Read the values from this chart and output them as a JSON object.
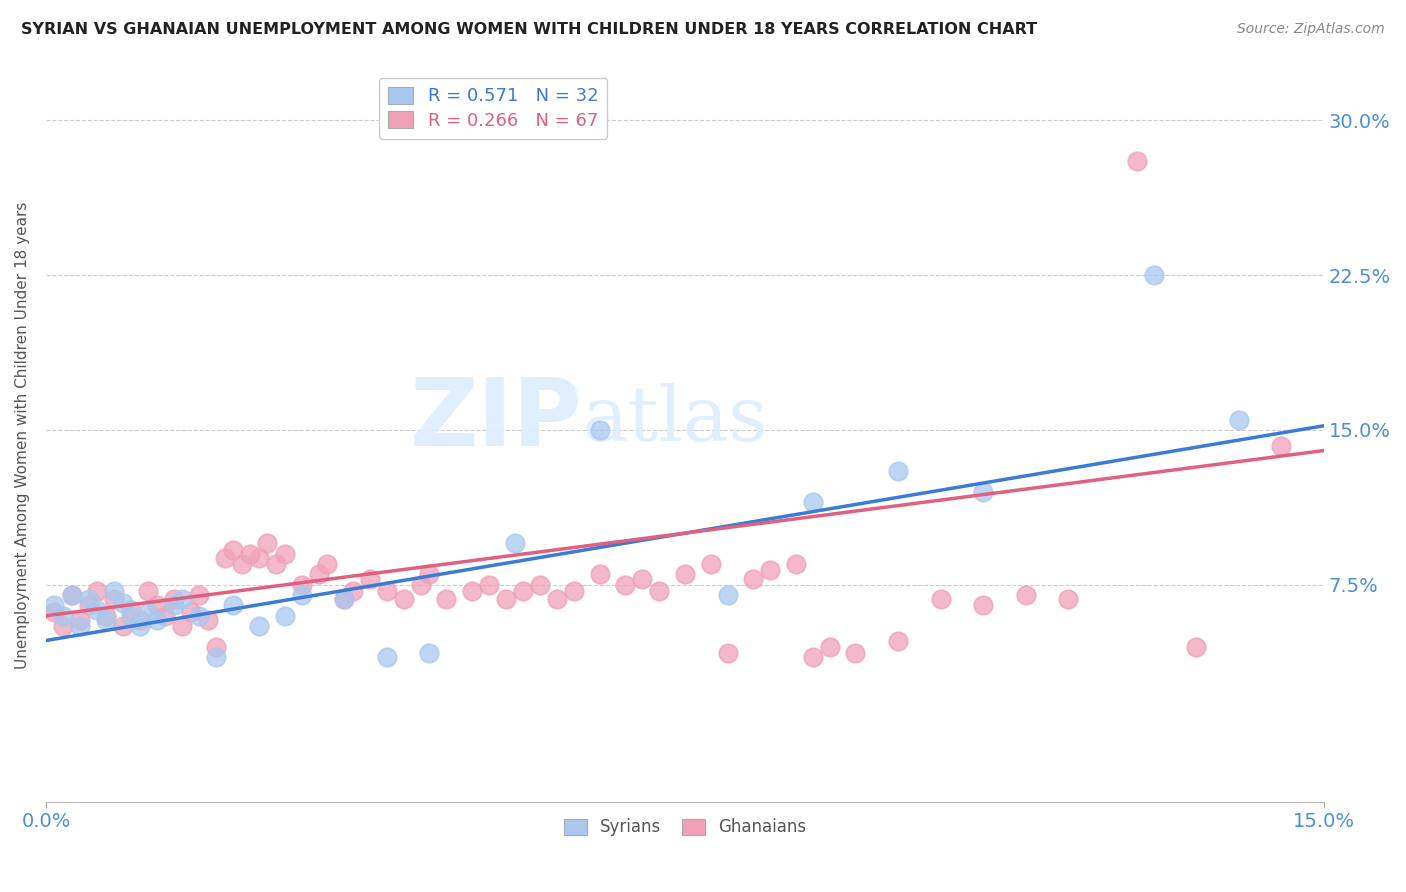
{
  "title": "SYRIAN VS GHANAIAN UNEMPLOYMENT AMONG WOMEN WITH CHILDREN UNDER 18 YEARS CORRELATION CHART",
  "source": "Source: ZipAtlas.com",
  "ylabel": "Unemployment Among Women with Children Under 18 years",
  "ytick_values": [
    0.075,
    0.15,
    0.225,
    0.3
  ],
  "ytick_labels": [
    "7.5%",
    "15.0%",
    "22.5%",
    "30.0%"
  ],
  "xlim": [
    0.0,
    0.15
  ],
  "ylim": [
    -0.03,
    0.325
  ],
  "color_syrian": "#A8C8F0",
  "color_ghanaian": "#F0A0B8",
  "color_line_syrian": "#3A7BD5",
  "color_line_ghanaian": "#E06080",
  "background_color": "#FFFFFF",
  "syrian_line_start_y": 0.048,
  "syrian_line_end_y": 0.152,
  "ghanaian_line_start_y": 0.06,
  "ghanaian_line_end_y": 0.14,
  "syrian_x": [
    0.001,
    0.002,
    0.003,
    0.004,
    0.005,
    0.006,
    0.007,
    0.008,
    0.009,
    0.01,
    0.011,
    0.012,
    0.013,
    0.015,
    0.016,
    0.018,
    0.02,
    0.022,
    0.025,
    0.028,
    0.03,
    0.035,
    0.04,
    0.045,
    0.055,
    0.065,
    0.08,
    0.09,
    0.1,
    0.11,
    0.13,
    0.14
  ],
  "syrian_y": [
    0.065,
    0.06,
    0.07,
    0.055,
    0.068,
    0.063,
    0.058,
    0.072,
    0.066,
    0.06,
    0.055,
    0.062,
    0.058,
    0.065,
    0.068,
    0.06,
    0.04,
    0.065,
    0.055,
    0.06,
    0.07,
    0.068,
    0.04,
    0.042,
    0.095,
    0.15,
    0.07,
    0.115,
    0.13,
    0.12,
    0.225,
    0.155
  ],
  "ghanaian_x": [
    0.001,
    0.002,
    0.003,
    0.004,
    0.005,
    0.006,
    0.007,
    0.008,
    0.009,
    0.01,
    0.011,
    0.012,
    0.013,
    0.014,
    0.015,
    0.016,
    0.017,
    0.018,
    0.019,
    0.02,
    0.021,
    0.022,
    0.023,
    0.024,
    0.025,
    0.026,
    0.027,
    0.028,
    0.03,
    0.032,
    0.033,
    0.035,
    0.036,
    0.038,
    0.04,
    0.042,
    0.044,
    0.045,
    0.047,
    0.05,
    0.052,
    0.054,
    0.056,
    0.058,
    0.06,
    0.062,
    0.065,
    0.068,
    0.07,
    0.072,
    0.075,
    0.078,
    0.08,
    0.083,
    0.085,
    0.088,
    0.09,
    0.092,
    0.095,
    0.1,
    0.105,
    0.11,
    0.115,
    0.12,
    0.128,
    0.135,
    0.145
  ],
  "ghanaian_y": [
    0.062,
    0.055,
    0.07,
    0.058,
    0.065,
    0.072,
    0.06,
    0.068,
    0.055,
    0.063,
    0.058,
    0.072,
    0.065,
    0.06,
    0.068,
    0.055,
    0.062,
    0.07,
    0.058,
    0.045,
    0.088,
    0.092,
    0.085,
    0.09,
    0.088,
    0.095,
    0.085,
    0.09,
    0.075,
    0.08,
    0.085,
    0.068,
    0.072,
    0.078,
    0.072,
    0.068,
    0.075,
    0.08,
    0.068,
    0.072,
    0.075,
    0.068,
    0.072,
    0.075,
    0.068,
    0.072,
    0.08,
    0.075,
    0.078,
    0.072,
    0.08,
    0.085,
    0.042,
    0.078,
    0.082,
    0.085,
    0.04,
    0.045,
    0.042,
    0.048,
    0.068,
    0.065,
    0.07,
    0.068,
    0.28,
    0.045,
    0.142
  ]
}
